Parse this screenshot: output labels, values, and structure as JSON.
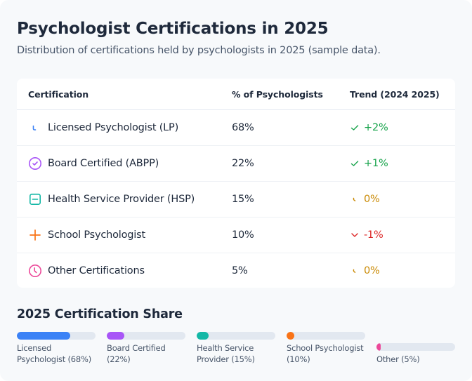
{
  "header": {
    "title": "Psychologist Certifications in 2025",
    "subtitle": "Distribution of certifications held by psychologists in 2025 (sample data)."
  },
  "table": {
    "columns": [
      "Certification",
      "% of Psychologists",
      "Trend (2024  2025)"
    ],
    "rows": [
      {
        "icon": "spinner-icon",
        "icon_color": "#3b82f6",
        "label": "Licensed Psychologist (LP)",
        "percent": "68%",
        "trend_icon": "check-icon",
        "trend": "+2%",
        "trend_color": "#16a34a"
      },
      {
        "icon": "check-circle-icon",
        "icon_color": "#a855f7",
        "label": "Board Certified (ABPP)",
        "percent": "22%",
        "trend_icon": "check-icon",
        "trend": "+1%",
        "trend_color": "#16a34a"
      },
      {
        "icon": "minus-square-icon",
        "icon_color": "#14b8a6",
        "label": "Health Service Provider (HSP)",
        "percent": "15%",
        "trend_icon": "spinner-icon",
        "trend": "0%",
        "trend_color": "#ca8a04"
      },
      {
        "icon": "plus-icon",
        "icon_color": "#f97316",
        "label": "School Psychologist",
        "percent": "10%",
        "trend_icon": "chevron-down-icon",
        "trend": "-1%",
        "trend_color": "#dc2626"
      },
      {
        "icon": "clock-icon",
        "icon_color": "#ec4899",
        "label": "Other Certifications",
        "percent": "5%",
        "trend_icon": "spinner-icon",
        "trend": "0%",
        "trend_color": "#ca8a04"
      }
    ]
  },
  "share": {
    "title": "2025 Certification Share",
    "items": [
      {
        "label": "Licensed Psychologist (68%)",
        "value": 68,
        "color": "#3b82f6"
      },
      {
        "label": "Board Certified (22%)",
        "value": 22,
        "color": "#a855f7"
      },
      {
        "label": "Health Service Provider (15%)",
        "value": 15,
        "color": "#14b8a6"
      },
      {
        "label": "School Psychologist (10%)",
        "value": 10,
        "color": "#f97316"
      },
      {
        "label": "Other (5%)",
        "value": 5,
        "color": "#ec4899"
      }
    ]
  },
  "chart_data": {
    "type": "bar",
    "title": "2025 Certification Share",
    "categories": [
      "Licensed Psychologist",
      "Board Certified",
      "Health Service Provider",
      "School Psychologist",
      "Other"
    ],
    "values": [
      68,
      22,
      15,
      10,
      5
    ],
    "trend_2024_2025": [
      2,
      1,
      0,
      -1,
      0
    ],
    "xlabel": "",
    "ylabel": "% of Psychologists",
    "ylim": [
      0,
      100
    ],
    "colors": [
      "#3b82f6",
      "#a855f7",
      "#14b8a6",
      "#f97316",
      "#ec4899"
    ]
  }
}
